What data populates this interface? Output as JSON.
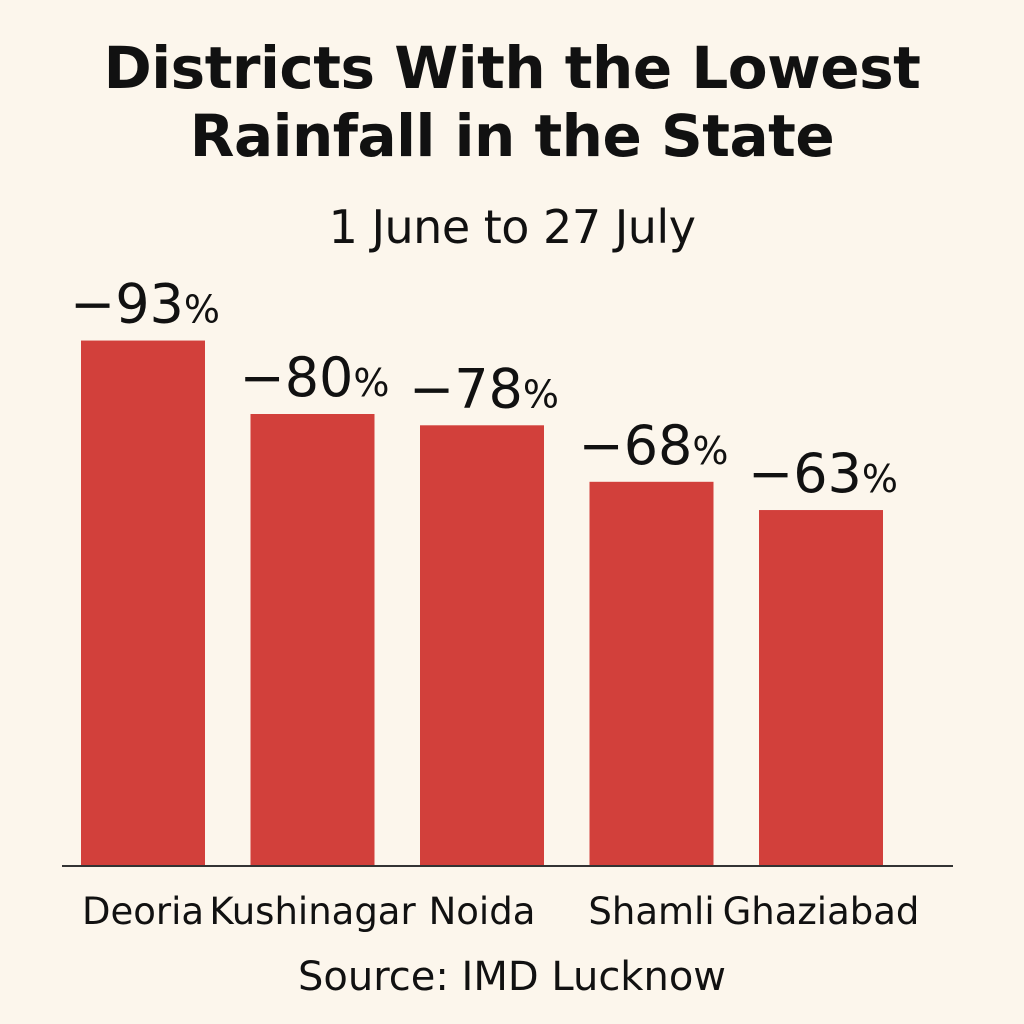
{
  "chart_data": {
    "type": "bar",
    "title": "Districts With the Lowest Rainfall in the State",
    "title_lines": [
      "Districts With the Lowest",
      "Rainfall in the State"
    ],
    "subtitle": "1 June to 27 July",
    "categories": [
      "Deoria",
      "Kushinagar",
      "Noida",
      "Shamli",
      "Ghaziabad"
    ],
    "values": [
      -93,
      -80,
      -78,
      -68,
      -63
    ],
    "value_labels": [
      "−93",
      "−80",
      "−78",
      "−68",
      "−63"
    ],
    "value_unit": "%",
    "ylim": [
      0,
      -100
    ],
    "grid": false,
    "legend": "none",
    "source": "Source: IMD Lucknow",
    "colors": {
      "bar": "#d2403b",
      "background": "#fcf6ec",
      "text": "#111111",
      "axis": "#333333"
    }
  }
}
